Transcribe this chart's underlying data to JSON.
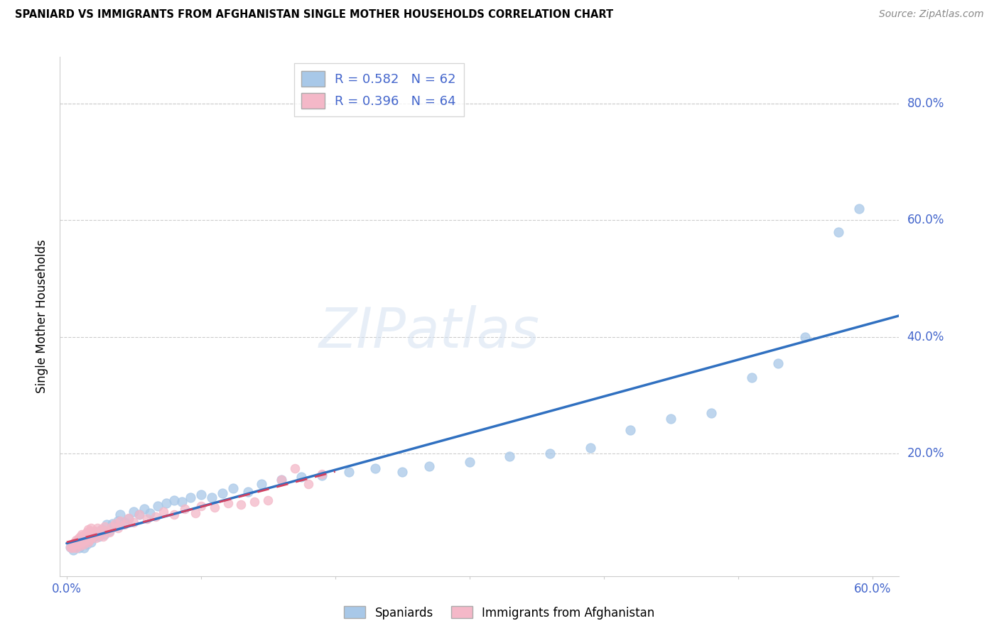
{
  "title": "SPANIARD VS IMMIGRANTS FROM AFGHANISTAN SINGLE MOTHER HOUSEHOLDS CORRELATION CHART",
  "source": "Source: ZipAtlas.com",
  "xlabel": "",
  "ylabel": "Single Mother Households",
  "xlim": [
    -0.005,
    0.62
  ],
  "ylim": [
    -0.01,
    0.88
  ],
  "xticks": [
    0.0,
    0.1,
    0.2,
    0.3,
    0.4,
    0.5,
    0.6
  ],
  "yticks": [
    0.0,
    0.2,
    0.4,
    0.6,
    0.8
  ],
  "ytick_labels": [
    "",
    "20.0%",
    "40.0%",
    "60.0%",
    "80.0%"
  ],
  "xtick_labels": [
    "0.0%",
    "",
    "",
    "",
    "",
    "",
    "60.0%"
  ],
  "legend_r1": "R = 0.582",
  "legend_n1": "N = 62",
  "legend_r2": "R = 0.396",
  "legend_n2": "N = 64",
  "color_blue": "#a8c8e8",
  "color_pink": "#f4b8c8",
  "color_blue_line": "#3070c0",
  "color_pink_line": "#d04060",
  "color_tick": "#4466cc",
  "grid_color": "#cccccc",
  "background_color": "#ffffff",
  "spaniards_x": [
    0.003,
    0.005,
    0.007,
    0.008,
    0.009,
    0.01,
    0.011,
    0.012,
    0.013,
    0.014,
    0.015,
    0.016,
    0.017,
    0.018,
    0.019,
    0.02,
    0.022,
    0.024,
    0.026,
    0.028,
    0.03,
    0.032,
    0.034,
    0.036,
    0.038,
    0.04,
    0.043,
    0.046,
    0.05,
    0.054,
    0.058,
    0.062,
    0.068,
    0.074,
    0.08,
    0.086,
    0.092,
    0.1,
    0.108,
    0.116,
    0.124,
    0.135,
    0.145,
    0.16,
    0.175,
    0.19,
    0.21,
    0.23,
    0.25,
    0.27,
    0.3,
    0.33,
    0.36,
    0.39,
    0.42,
    0.45,
    0.48,
    0.51,
    0.53,
    0.55,
    0.575,
    0.59
  ],
  "spaniards_y": [
    0.04,
    0.035,
    0.045,
    0.05,
    0.038,
    0.042,
    0.048,
    0.052,
    0.038,
    0.055,
    0.045,
    0.05,
    0.06,
    0.048,
    0.055,
    0.058,
    0.065,
    0.058,
    0.07,
    0.062,
    0.078,
    0.068,
    0.08,
    0.075,
    0.085,
    0.095,
    0.082,
    0.088,
    0.1,
    0.095,
    0.105,
    0.098,
    0.11,
    0.115,
    0.12,
    0.118,
    0.125,
    0.13,
    0.125,
    0.132,
    0.14,
    0.135,
    0.148,
    0.155,
    0.16,
    0.162,
    0.168,
    0.175,
    0.168,
    0.178,
    0.185,
    0.195,
    0.2,
    0.21,
    0.24,
    0.26,
    0.27,
    0.33,
    0.355,
    0.4,
    0.58,
    0.62
  ],
  "afghan_x": [
    0.003,
    0.004,
    0.005,
    0.005,
    0.006,
    0.007,
    0.007,
    0.008,
    0.009,
    0.009,
    0.01,
    0.01,
    0.011,
    0.011,
    0.012,
    0.012,
    0.013,
    0.013,
    0.014,
    0.015,
    0.015,
    0.016,
    0.016,
    0.017,
    0.017,
    0.018,
    0.018,
    0.019,
    0.019,
    0.02,
    0.021,
    0.022,
    0.023,
    0.024,
    0.025,
    0.026,
    0.027,
    0.028,
    0.03,
    0.032,
    0.034,
    0.036,
    0.038,
    0.04,
    0.043,
    0.046,
    0.05,
    0.054,
    0.06,
    0.066,
    0.072,
    0.08,
    0.088,
    0.096,
    0.1,
    0.11,
    0.12,
    0.13,
    0.14,
    0.15,
    0.16,
    0.17,
    0.18,
    0.19
  ],
  "afghan_y": [
    0.04,
    0.038,
    0.042,
    0.045,
    0.048,
    0.038,
    0.052,
    0.045,
    0.05,
    0.055,
    0.042,
    0.058,
    0.048,
    0.062,
    0.05,
    0.055,
    0.045,
    0.06,
    0.052,
    0.058,
    0.065,
    0.048,
    0.07,
    0.052,
    0.068,
    0.055,
    0.072,
    0.058,
    0.065,
    0.06,
    0.068,
    0.055,
    0.072,
    0.065,
    0.06,
    0.07,
    0.058,
    0.075,
    0.068,
    0.065,
    0.075,
    0.08,
    0.072,
    0.085,
    0.078,
    0.09,
    0.082,
    0.095,
    0.088,
    0.092,
    0.1,
    0.095,
    0.105,
    0.098,
    0.11,
    0.108,
    0.115,
    0.112,
    0.118,
    0.12,
    0.155,
    0.175,
    0.148,
    0.165
  ]
}
